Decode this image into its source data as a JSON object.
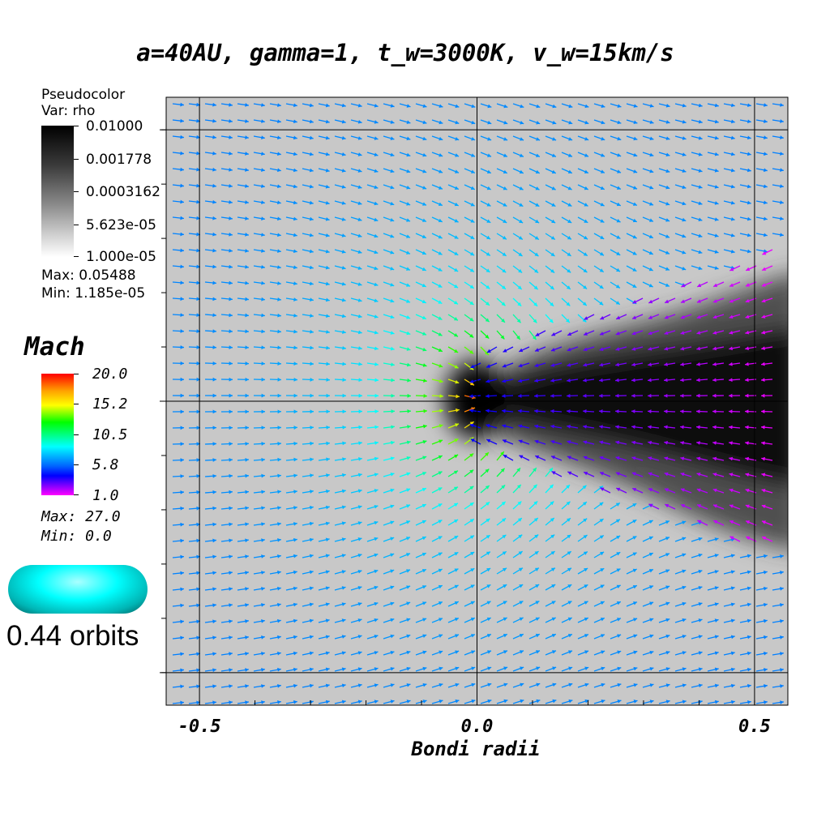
{
  "title": "a=40AU, gamma=1, t_w=3000K, v_w=15km/s",
  "rho_legend": {
    "heading1": "Pseudocolor",
    "heading2": "Var: rho",
    "ticks": [
      "0.01000",
      "0.001778",
      "0.0003162",
      "5.623e-05",
      "1.000e-05"
    ],
    "max": "Max:  0.05488",
    "min": "Min:  1.185e-05"
  },
  "mach_legend": {
    "title": "Mach",
    "ticks": [
      "20.0",
      "15.2",
      "10.5",
      "5.8",
      "1.0"
    ],
    "max": "Max:  27.0",
    "min": "Min:  0.0"
  },
  "time_label": "0.44 orbits",
  "chart_data": {
    "type": "heatmap",
    "title": "a=40AU, gamma=1, t_w=3000K, v_w=15km/s",
    "xlabel": "Bondi radii",
    "ylabel": "",
    "xlim": [
      -0.56,
      0.56
    ],
    "ylim": [
      -0.56,
      0.56
    ],
    "x_ticks": [
      "-0.5",
      "0.0",
      "0.5"
    ],
    "grid_lines_x": [
      -0.5,
      0.0,
      0.5
    ],
    "grid_lines_y": [
      -0.5,
      0.0,
      0.5
    ],
    "field": "rho",
    "rho_colorbar_range": [
      1e-05,
      0.01
    ],
    "vector_field": "velocity colored by Mach",
    "mach_colorbar_range": [
      1.0,
      20.0
    ],
    "accretor_position": [
      0.0,
      0.0
    ],
    "wake_direction": "+x"
  },
  "colors": {
    "background_gas": "#c8c8c8",
    "wake": "#000000",
    "plot_frame": "#000000"
  }
}
